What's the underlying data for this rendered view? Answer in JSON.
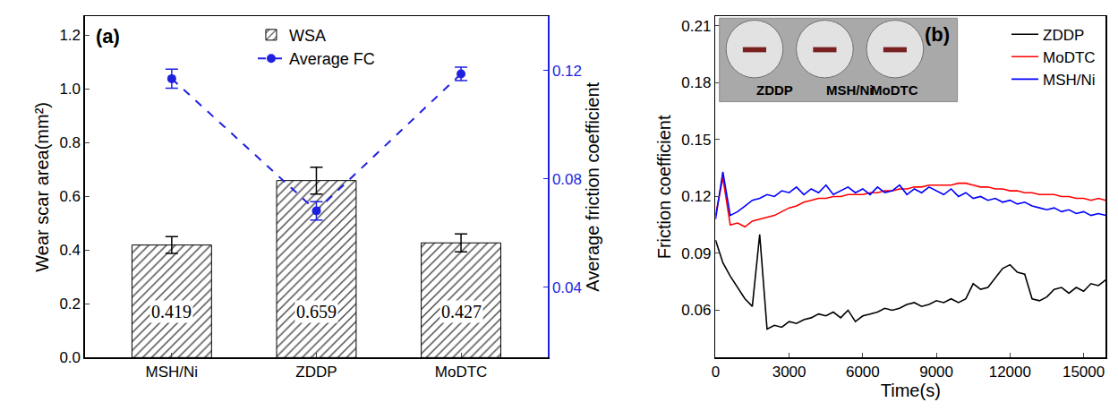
{
  "chart_data": [
    {
      "type": "bar",
      "panel": "(a)",
      "categories": [
        "MSH/Ni",
        "ZDDP",
        "MoDTC"
      ],
      "series": [
        {
          "name": "WSA",
          "type": "bar",
          "color": "#444444",
          "values": [
            0.419,
            0.659,
            0.427
          ],
          "errors": [
            0.031,
            0.05,
            0.033
          ]
        },
        {
          "name": "Average FC",
          "type": "line",
          "axis": "y2",
          "color": "#1f1fe0",
          "marker": "circle",
          "line_style": "dash",
          "values": [
            0.117,
            0.0682,
            0.1188
          ],
          "errors": [
            0.0035,
            0.0034,
            0.0025
          ]
        }
      ],
      "y_label": "Wear scar area(mm²)",
      "y2_label": "Average friction coefficient",
      "ylim": [
        0,
        1.27
      ],
      "yticks": [
        {
          "value": 0,
          "label": "0.0"
        },
        0.2,
        0.4,
        0.6,
        0.8,
        {
          "value": 1,
          "label": "1.0"
        },
        1.2
      ],
      "y2lim": [
        0.014,
        0.14
      ],
      "y2ticks": [
        0.04,
        0.08,
        0.12
      ],
      "data_labels": true,
      "legend": "top",
      "grid": false
    },
    {
      "type": "line",
      "panel": "(b)",
      "annotations": [
        "ZDDP",
        "MSH/Ni",
        "MoDTC"
      ],
      "x": [
        0,
        300,
        600,
        900,
        1200,
        1500,
        1800,
        2100,
        2400,
        2700,
        3000,
        3300,
        3600,
        3900,
        4200,
        4500,
        4800,
        5100,
        5400,
        5700,
        6000,
        6300,
        6600,
        6900,
        7200,
        7500,
        7800,
        8100,
        8400,
        8700,
        9000,
        9300,
        9600,
        9900,
        10200,
        10500,
        10800,
        11100,
        11400,
        11700,
        12000,
        12300,
        12600,
        12900,
        13200,
        13500,
        13800,
        14100,
        14400,
        14700,
        15000,
        15300,
        15600,
        15900
      ],
      "series": [
        {
          "name": "ZDDP",
          "color": "#000000",
          "values": [
            0.097,
            0.085,
            0.078,
            0.072,
            0.066,
            0.062,
            0.1,
            0.05,
            0.052,
            0.051,
            0.054,
            0.053,
            0.055,
            0.056,
            0.058,
            0.057,
            0.059,
            0.056,
            0.06,
            0.054,
            0.057,
            0.058,
            0.059,
            0.061,
            0.06,
            0.061,
            0.063,
            0.064,
            0.062,
            0.063,
            0.065,
            0.064,
            0.066,
            0.064,
            0.066,
            0.074,
            0.071,
            0.072,
            0.077,
            0.082,
            0.084,
            0.08,
            0.079,
            0.066,
            0.065,
            0.067,
            0.071,
            0.072,
            0.069,
            0.072,
            0.07,
            0.074,
            0.073,
            0.076
          ]
        },
        {
          "name": "MoDTC",
          "color": "#ff0000",
          "values": [
            0.11,
            0.13,
            0.105,
            0.106,
            0.104,
            0.107,
            0.108,
            0.109,
            0.11,
            0.112,
            0.114,
            0.115,
            0.117,
            0.118,
            0.119,
            0.119,
            0.12,
            0.12,
            0.121,
            0.121,
            0.121,
            0.122,
            0.122,
            0.123,
            0.123,
            0.124,
            0.124,
            0.125,
            0.125,
            0.126,
            0.126,
            0.126,
            0.126,
            0.127,
            0.127,
            0.126,
            0.125,
            0.125,
            0.124,
            0.124,
            0.123,
            0.123,
            0.122,
            0.122,
            0.121,
            0.121,
            0.121,
            0.12,
            0.12,
            0.119,
            0.119,
            0.118,
            0.119,
            0.118
          ]
        },
        {
          "name": "MSH/Ni",
          "color": "#0000ff",
          "values": [
            0.108,
            0.133,
            0.11,
            0.112,
            0.115,
            0.118,
            0.119,
            0.121,
            0.12,
            0.123,
            0.122,
            0.125,
            0.121,
            0.124,
            0.122,
            0.126,
            0.121,
            0.123,
            0.125,
            0.122,
            0.124,
            0.121,
            0.125,
            0.122,
            0.123,
            0.126,
            0.121,
            0.124,
            0.122,
            0.125,
            0.123,
            0.121,
            0.124,
            0.12,
            0.122,
            0.119,
            0.12,
            0.118,
            0.119,
            0.117,
            0.118,
            0.116,
            0.117,
            0.115,
            0.114,
            0.113,
            0.114,
            0.112,
            0.113,
            0.111,
            0.112,
            0.11,
            0.111,
            0.11
          ]
        }
      ],
      "x_label": "Time(s)",
      "y_label": "Friction coefficient",
      "xlim": [
        0,
        15900
      ],
      "xticks": [
        0,
        3000,
        6000,
        9000,
        12000,
        15000
      ],
      "ylim": [
        0.035,
        0.215
      ],
      "yticks": [
        0.06,
        0.09,
        0.12,
        0.15,
        0.18,
        0.21
      ],
      "legend": "top right",
      "grid": false
    }
  ]
}
